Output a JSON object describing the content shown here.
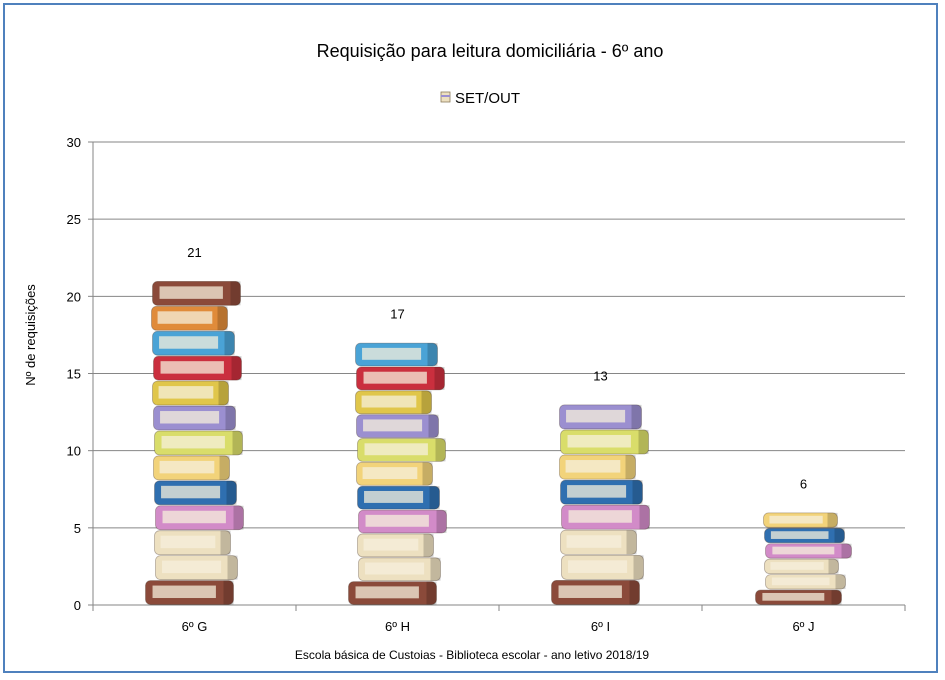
{
  "chart_data": {
    "type": "bar",
    "title": "Requisição para leitura domiciliária - 6º ano",
    "categories": [
      "6º G",
      "6º H",
      "6º I",
      "6º J"
    ],
    "series": [
      {
        "name": "SET/OUT",
        "values": [
          21,
          17,
          13,
          6
        ]
      }
    ],
    "ylabel": "Nº de requisições",
    "xlabel": "",
    "ylim": [
      0,
      30
    ],
    "yticks": [
      "0",
      "5",
      "10",
      "15",
      "20",
      "25",
      "30"
    ],
    "data_labels": [
      "21",
      "17",
      "13",
      "6"
    ],
    "grid": true,
    "legend_position": "top",
    "footer": "Escola básica de Custoias - Biblioteca escolar - ano letivo 2018/19",
    "bar_style": "stacked-books-picture",
    "colors": {
      "frame": "#4f81bd",
      "grid": "#868686",
      "book_colors": [
        "#8b4a3a",
        "#ede0c0",
        "#9b8fd0",
        "#f2d37a",
        "#e0c64a",
        "#ca2f3e",
        "#4aa3d6",
        "#e08b3a",
        "#2f6fb0",
        "#d9dd6a",
        "#d28bc8"
      ]
    }
  }
}
